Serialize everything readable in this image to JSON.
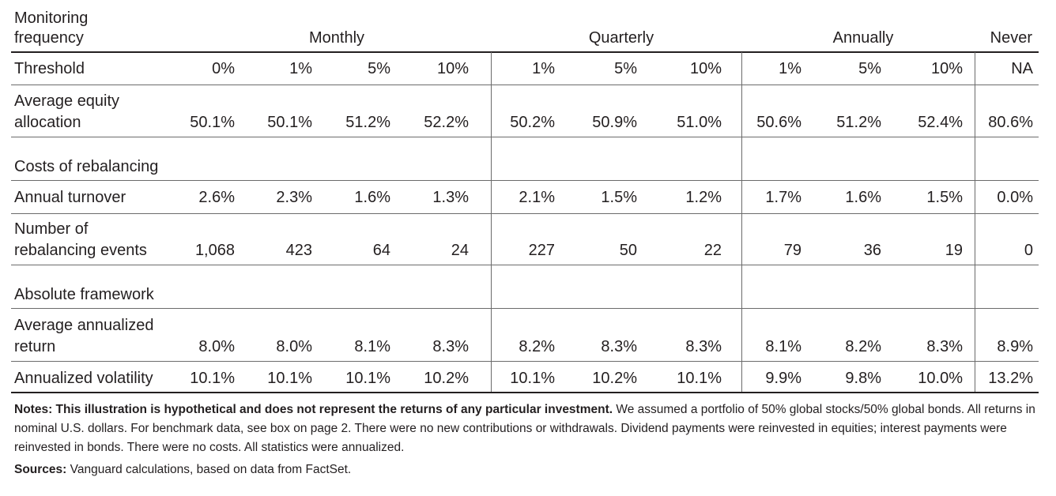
{
  "header": {
    "row_label_line1": "Monitoring",
    "row_label_line2": "frequency",
    "groups": [
      "Monthly",
      "Quarterly",
      "Annually",
      "Never"
    ]
  },
  "rows": {
    "threshold": {
      "label": "Threshold",
      "values": [
        "0%",
        "1%",
        "5%",
        "10%",
        "1%",
        "5%",
        "10%",
        "1%",
        "5%",
        "10%",
        "NA"
      ]
    },
    "equity": {
      "label_line1": "Average equity",
      "label_line2": "allocation",
      "values": [
        "50.1%",
        "50.1%",
        "51.2%",
        "52.2%",
        "50.2%",
        "50.9%",
        "51.0%",
        "50.6%",
        "51.2%",
        "52.4%",
        "80.6%"
      ]
    },
    "costs_section": "Costs of rebalancing",
    "turnover": {
      "label": "Annual turnover",
      "values": [
        "2.6%",
        "2.3%",
        "1.6%",
        "1.3%",
        "2.1%",
        "1.5%",
        "1.2%",
        "1.7%",
        "1.6%",
        "1.5%",
        "0.0%"
      ]
    },
    "events": {
      "label_line1": "Number of",
      "label_line2": "rebalancing events",
      "values": [
        "1,068",
        "423",
        "64",
        "24",
        "227",
        "50",
        "22",
        "79",
        "36",
        "19",
        "0"
      ]
    },
    "absolute_section": "Absolute framework",
    "return": {
      "label_line1": "Average annualized",
      "label_line2": "return",
      "values": [
        "8.0%",
        "8.0%",
        "8.1%",
        "8.3%",
        "8.2%",
        "8.3%",
        "8.3%",
        "8.1%",
        "8.2%",
        "8.3%",
        "8.9%"
      ]
    },
    "volatility": {
      "label": "Annualized volatility",
      "values": [
        "10.1%",
        "10.1%",
        "10.1%",
        "10.2%",
        "10.1%",
        "10.2%",
        "10.1%",
        "9.9%",
        "9.8%",
        "10.0%",
        "13.2%"
      ]
    }
  },
  "notes": {
    "lead": "Notes: This illustration is hypothetical and does not represent the returns of any particular investment.",
    "body": " We assumed a portfolio of 50% global stocks/50% global bonds. All returns in nominal U.S. dollars. For benchmark data, see box on page 2. There were no new contributions or withdrawals. Dividend payments were reinvested in equities; interest payments were reinvested in bonds. There were no costs. All statistics were annualized."
  },
  "sources": {
    "lead": "Sources:",
    "body": " Vanguard calculations, based on data from FactSet."
  }
}
